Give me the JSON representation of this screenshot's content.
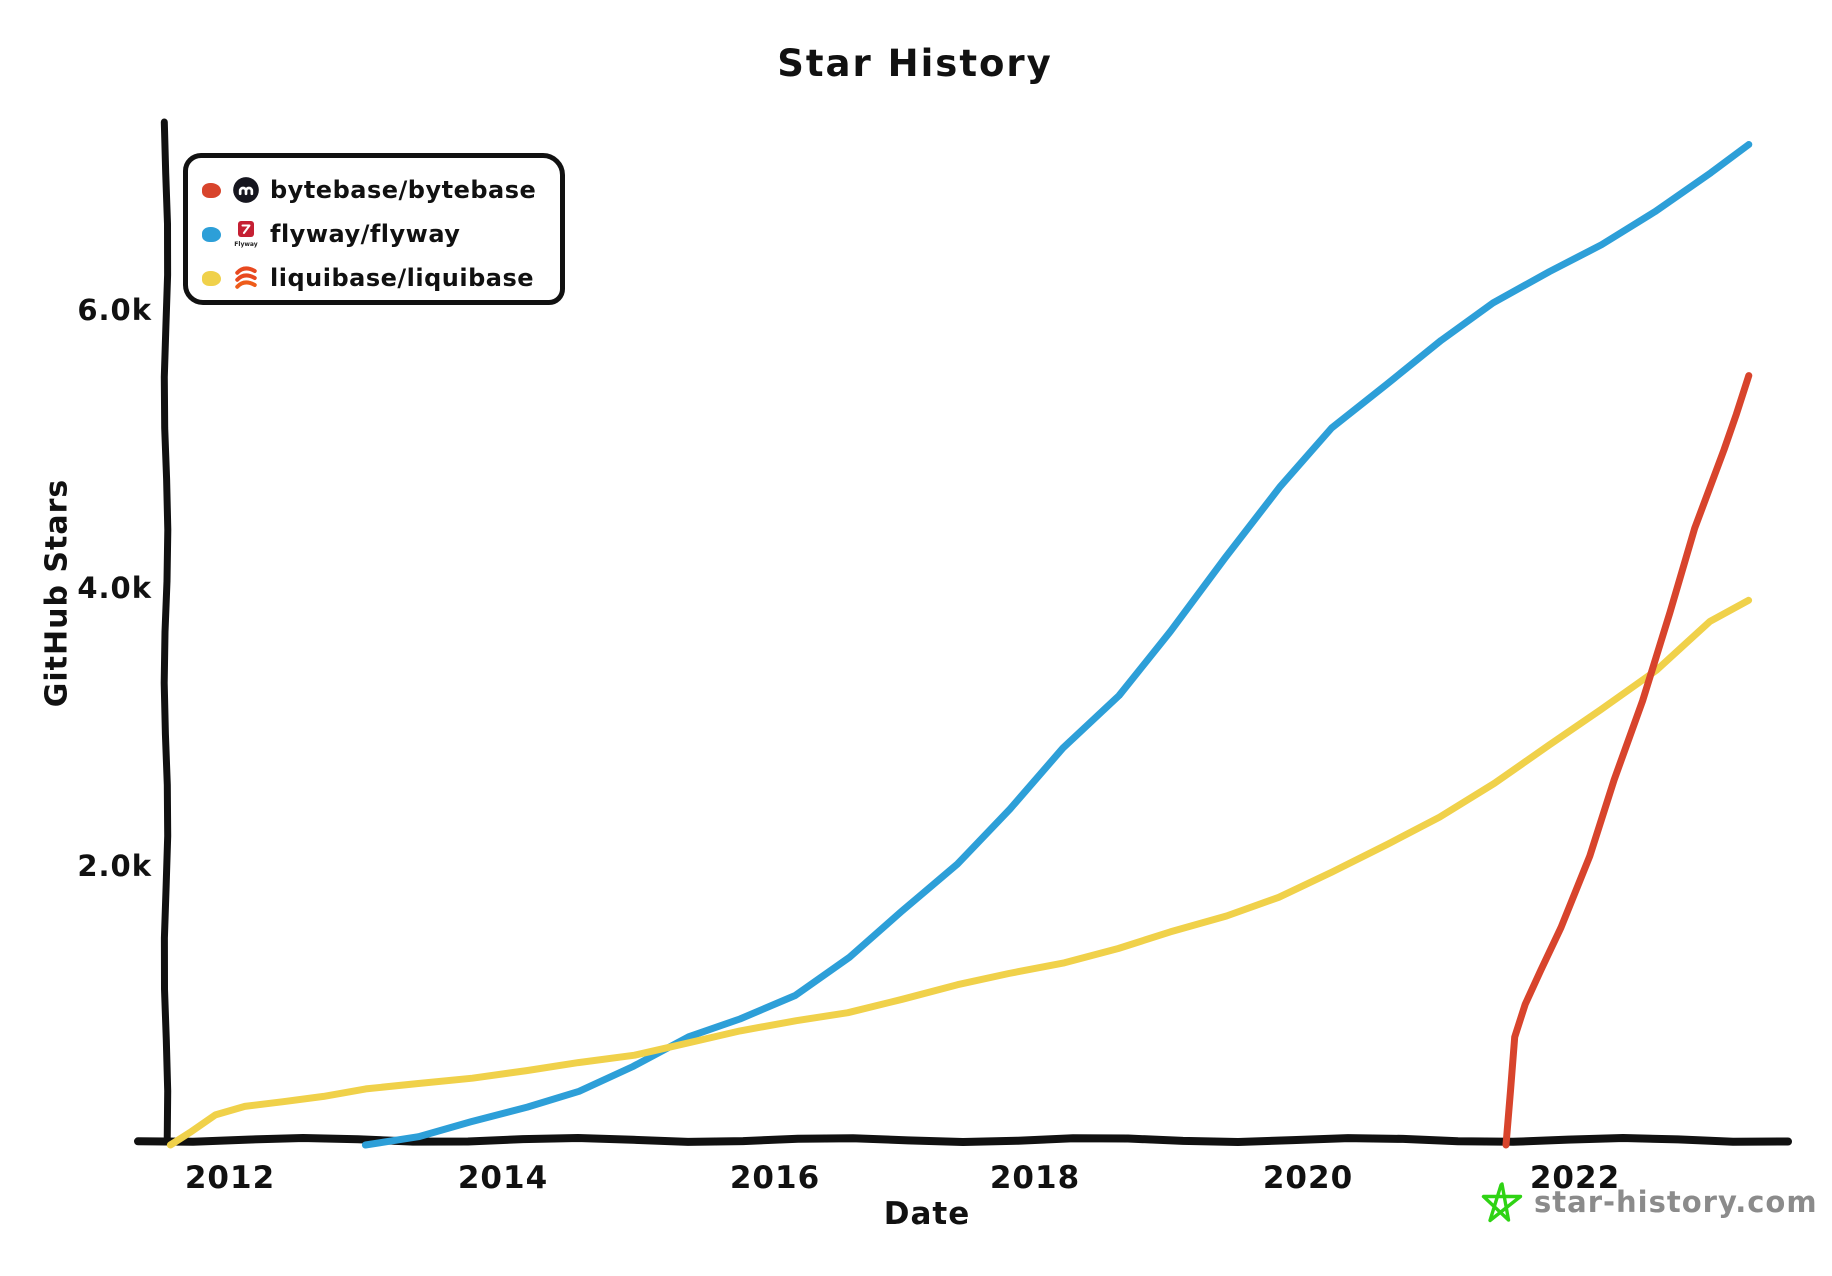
{
  "title": "Star History",
  "axes": {
    "x_label": "Date",
    "y_label": "GitHub Stars",
    "x_ticks": [
      "2012",
      "2014",
      "2016",
      "2018",
      "2020",
      "2022"
    ],
    "y_ticks": [
      "6.0k",
      "4.0k",
      "2.0k"
    ]
  },
  "legend": {
    "items": [
      {
        "label": "bytebase/bytebase",
        "color": "#d8442c",
        "icon": "bytebase-logo"
      },
      {
        "label": "flyway/flyway",
        "color": "#2d9fd8",
        "icon": "flyway-logo"
      },
      {
        "label": "liquibase/liquibase",
        "color": "#f0d14a",
        "icon": "liquibase-logo"
      }
    ]
  },
  "watermark": {
    "text": "star-history.com",
    "icon": "star-doodle",
    "text_color": "#8b8b8b",
    "star_color": "#2fd314"
  },
  "chart_data": {
    "type": "line",
    "title": "Star History",
    "xlabel": "Date",
    "ylabel": "GitHub Stars",
    "x_unit": "year",
    "xlim": [
      2011.5,
      2023.55
    ],
    "ylim": [
      0,
      7350
    ],
    "grid": false,
    "legend_position": "top-left",
    "series": [
      {
        "name": "flyway/flyway",
        "color": "#2d9fd8",
        "points": [
          [
            2013.0,
            0
          ],
          [
            2013.4,
            60
          ],
          [
            2013.8,
            150
          ],
          [
            2014.2,
            260
          ],
          [
            2014.6,
            390
          ],
          [
            2015.0,
            560
          ],
          [
            2015.4,
            760
          ],
          [
            2015.8,
            900
          ],
          [
            2016.2,
            1080
          ],
          [
            2016.6,
            1340
          ],
          [
            2017.0,
            1660
          ],
          [
            2017.4,
            2020
          ],
          [
            2017.8,
            2420
          ],
          [
            2018.2,
            2840
          ],
          [
            2018.6,
            3220
          ],
          [
            2019.0,
            3700
          ],
          [
            2019.4,
            4220
          ],
          [
            2019.8,
            4720
          ],
          [
            2020.2,
            5150
          ],
          [
            2020.6,
            5480
          ],
          [
            2021.0,
            5780
          ],
          [
            2021.4,
            6040
          ],
          [
            2021.8,
            6280
          ],
          [
            2022.2,
            6480
          ],
          [
            2022.6,
            6700
          ],
          [
            2023.0,
            6980
          ],
          [
            2023.3,
            7200
          ]
        ]
      },
      {
        "name": "liquibase/liquibase",
        "color": "#f0d14a",
        "points": [
          [
            2011.55,
            0
          ],
          [
            2011.7,
            90
          ],
          [
            2011.9,
            200
          ],
          [
            2012.1,
            265
          ],
          [
            2012.4,
            315
          ],
          [
            2012.7,
            345
          ],
          [
            2013.0,
            385
          ],
          [
            2013.4,
            435
          ],
          [
            2013.8,
            485
          ],
          [
            2014.2,
            525
          ],
          [
            2014.6,
            575
          ],
          [
            2015.0,
            645
          ],
          [
            2015.4,
            735
          ],
          [
            2015.8,
            805
          ],
          [
            2016.2,
            880
          ],
          [
            2016.6,
            955
          ],
          [
            2017.0,
            1045
          ],
          [
            2017.4,
            1135
          ],
          [
            2017.8,
            1225
          ],
          [
            2018.2,
            1315
          ],
          [
            2018.6,
            1405
          ],
          [
            2019.0,
            1515
          ],
          [
            2019.4,
            1645
          ],
          [
            2019.8,
            1785
          ],
          [
            2020.2,
            1950
          ],
          [
            2020.6,
            2150
          ],
          [
            2021.0,
            2360
          ],
          [
            2021.4,
            2600
          ],
          [
            2021.8,
            2860
          ],
          [
            2022.2,
            3120
          ],
          [
            2022.6,
            3420
          ],
          [
            2023.0,
            3760
          ],
          [
            2023.3,
            3900
          ]
        ]
      },
      {
        "name": "bytebase/bytebase",
        "color": "#d8442c",
        "points": [
          [
            2021.48,
            0
          ],
          [
            2021.52,
            400
          ],
          [
            2021.56,
            760
          ],
          [
            2021.62,
            1000
          ],
          [
            2021.75,
            1260
          ],
          [
            2021.9,
            1560
          ],
          [
            2022.1,
            2060
          ],
          [
            2022.3,
            2620
          ],
          [
            2022.5,
            3200
          ],
          [
            2022.7,
            3820
          ],
          [
            2022.9,
            4420
          ],
          [
            2023.1,
            5000
          ],
          [
            2023.2,
            5260
          ],
          [
            2023.3,
            5520
          ]
        ]
      }
    ]
  }
}
